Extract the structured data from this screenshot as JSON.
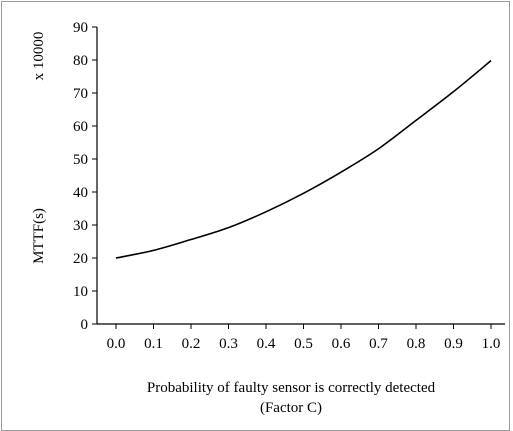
{
  "chart_data": {
    "type": "line",
    "title": "",
    "xlabel_line1": "Probability of faulty sensor is correctly detected",
    "xlabel_line2": "(Factor C)",
    "ylabel": "MTTF(s)",
    "y_multiplier_label": "x 10000",
    "x_ticks": [
      "0.0",
      "0.1",
      "0.2",
      "0.3",
      "0.4",
      "0.5",
      "0.6",
      "0.7",
      "0.8",
      "0.9",
      "1.0"
    ],
    "y_ticks": [
      "0",
      "10",
      "20",
      "30",
      "40",
      "50",
      "60",
      "70",
      "80",
      "90"
    ],
    "xlim": [
      0,
      1
    ],
    "ylim": [
      0,
      90
    ],
    "grid": false,
    "series": [
      {
        "x": [
          0.0,
          0.1,
          0.2,
          0.3,
          0.4,
          0.5,
          0.6,
          0.7,
          0.8,
          0.9,
          1.0
        ],
        "values": [
          20,
          22.3,
          25.6,
          29.2,
          34,
          39.6,
          46,
          53.1,
          61.7,
          70.4,
          79.8
        ],
        "color": "#000000"
      }
    ]
  }
}
